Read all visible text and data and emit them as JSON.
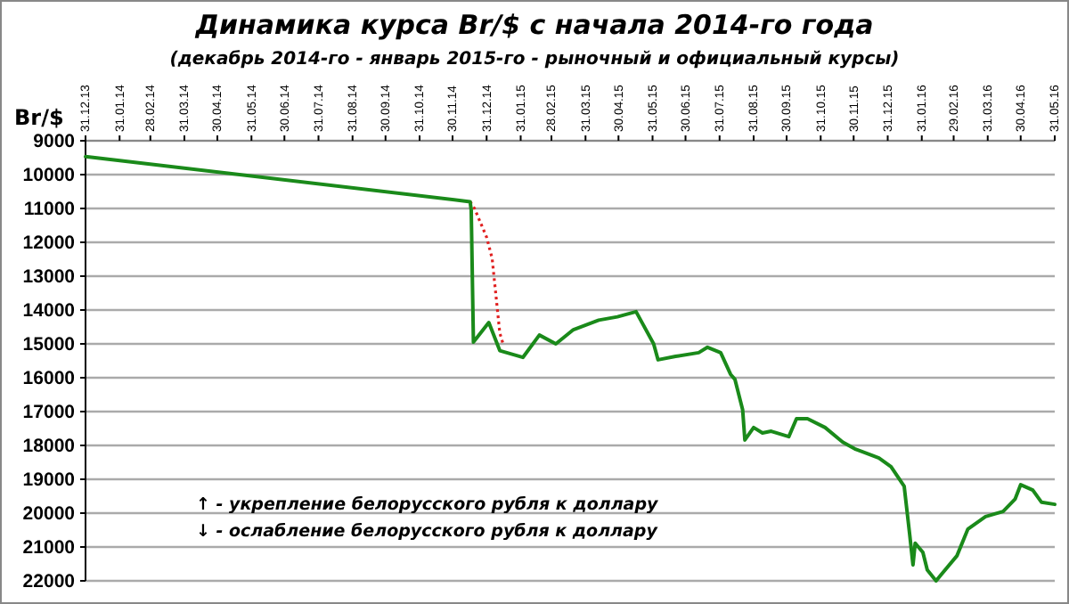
{
  "chart_data": {
    "type": "line",
    "title": "Динамика курса Br/$ с начала 2014-го года",
    "subtitle": "(декабрь 2014-го - январь 2015-го - рыночный и официальный курсы)",
    "ylabel": "Br/$",
    "annotations": [
      "↑ - укрепление белорусского рубля к доллару",
      "↓ - ослабление белорусского рубля к доллару"
    ],
    "xlim": [
      "2013-12-31",
      "2016-05-31"
    ],
    "xticks": [
      {
        "value": "2013-12-31",
        "label": "31.12.13"
      },
      {
        "value": "2014-01-31",
        "label": "31.01.14"
      },
      {
        "value": "2014-02-28",
        "label": "28.02.14"
      },
      {
        "value": "2014-03-31",
        "label": "31.03.14"
      },
      {
        "value": "2014-04-30",
        "label": "30.04.14"
      },
      {
        "value": "2014-05-31",
        "label": "31.05.14"
      },
      {
        "value": "2014-06-30",
        "label": "30.06.14"
      },
      {
        "value": "2014-07-31",
        "label": "31.07.14"
      },
      {
        "value": "2014-08-31",
        "label": "31.08.14"
      },
      {
        "value": "2014-09-30",
        "label": "30.09.14"
      },
      {
        "value": "2014-10-31",
        "label": "31.10.14"
      },
      {
        "value": "2014-11-30",
        "label": "30.11.14"
      },
      {
        "value": "2014-12-31",
        "label": "31.12.14"
      },
      {
        "value": "2015-01-31",
        "label": "31.01.15"
      },
      {
        "value": "2015-02-28",
        "label": "28.02.15"
      },
      {
        "value": "2015-03-31",
        "label": "31.03.15"
      },
      {
        "value": "2015-04-30",
        "label": "30.04.15"
      },
      {
        "value": "2015-05-31",
        "label": "31.05.15"
      },
      {
        "value": "2015-06-30",
        "label": "30.06.15"
      },
      {
        "value": "2015-07-31",
        "label": "31.07.15"
      },
      {
        "value": "2015-08-31",
        "label": "31.08.15"
      },
      {
        "value": "2015-09-30",
        "label": "30.09.15"
      },
      {
        "value": "2015-10-31",
        "label": "31.10.15"
      },
      {
        "value": "2015-11-30",
        "label": "30.11.15"
      },
      {
        "value": "2015-12-31",
        "label": "31.12.15"
      },
      {
        "value": "2016-01-31",
        "label": "31.01.16"
      },
      {
        "value": "2016-02-29",
        "label": "29.02.16"
      },
      {
        "value": "2016-03-31",
        "label": "31.03.16"
      },
      {
        "value": "2016-04-30",
        "label": "30.04.16"
      },
      {
        "value": "2016-05-31",
        "label": "31.05.16"
      }
    ],
    "ylim": [
      22000,
      9000
    ],
    "yticks": [
      9000,
      10000,
      11000,
      12000,
      13000,
      14000,
      15000,
      16000,
      17000,
      18000,
      19000,
      20000,
      21000,
      22000
    ],
    "grid": "y",
    "series": [
      {
        "color": "#e02020",
        "line_style": "dotted",
        "x": [
          "2014-12-16",
          "2014-12-20",
          "2014-12-31",
          "2015-01-05",
          "2015-01-12",
          "2015-01-15"
        ],
        "values": [
          10800,
          11000,
          11850,
          12470,
          14680,
          15000
        ]
      },
      {
        "color": "#1a8a1a",
        "line_style": "solid",
        "x": [
          "2013-12-31",
          "2014-12-16",
          "2014-12-17",
          "2014-12-19",
          "2015-01-02",
          "2015-01-12",
          "2015-02-02",
          "2015-02-17",
          "2015-03-04",
          "2015-03-20",
          "2015-04-12",
          "2015-04-29",
          "2015-05-16",
          "2015-06-01",
          "2015-06-05",
          "2015-06-21",
          "2015-07-12",
          "2015-07-20",
          "2015-08-01",
          "2015-08-10",
          "2015-08-14",
          "2015-08-21",
          "2015-08-23",
          "2015-08-31",
          "2015-09-08",
          "2015-09-16",
          "2015-10-02",
          "2015-10-09",
          "2015-10-19",
          "2015-11-04",
          "2015-11-20",
          "2015-12-01",
          "2015-12-23",
          "2016-01-03",
          "2016-01-15",
          "2016-01-20",
          "2016-01-23",
          "2016-01-25",
          "2016-02-01",
          "2016-02-05",
          "2016-02-13",
          "2016-02-17",
          "2016-03-03",
          "2016-03-13",
          "2016-03-29",
          "2016-04-14",
          "2016-04-25",
          "2016-04-30",
          "2016-05-11",
          "2016-05-19",
          "2016-05-31"
        ],
        "values": [
          9470,
          10800,
          11050,
          14950,
          14370,
          15200,
          15400,
          14740,
          15000,
          14580,
          14300,
          14200,
          14050,
          15000,
          15470,
          15370,
          15260,
          15100,
          15260,
          15900,
          16050,
          16950,
          17840,
          17470,
          17630,
          17580,
          17740,
          17210,
          17210,
          17470,
          17900,
          18100,
          18370,
          18630,
          19210,
          20630,
          21530,
          20890,
          21160,
          21680,
          22000,
          21840,
          21260,
          20470,
          20100,
          19950,
          19580,
          19160,
          19320,
          19680,
          19740
        ]
      }
    ]
  }
}
